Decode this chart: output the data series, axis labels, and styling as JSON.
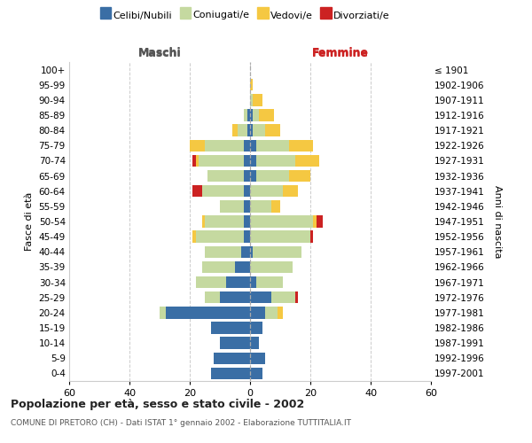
{
  "age_groups": [
    "0-4",
    "5-9",
    "10-14",
    "15-19",
    "20-24",
    "25-29",
    "30-34",
    "35-39",
    "40-44",
    "45-49",
    "50-54",
    "55-59",
    "60-64",
    "65-69",
    "70-74",
    "75-79",
    "80-84",
    "85-89",
    "90-94",
    "95-99",
    "100+"
  ],
  "birth_years": [
    "1997-2001",
    "1992-1996",
    "1987-1991",
    "1982-1986",
    "1977-1981",
    "1972-1976",
    "1967-1971",
    "1962-1966",
    "1957-1961",
    "1952-1956",
    "1947-1951",
    "1942-1946",
    "1937-1941",
    "1932-1936",
    "1927-1931",
    "1922-1926",
    "1917-1921",
    "1912-1916",
    "1907-1911",
    "1902-1906",
    "≤ 1901"
  ],
  "maschi": {
    "celibi": [
      13,
      12,
      10,
      13,
      28,
      10,
      8,
      5,
      3,
      2,
      2,
      2,
      2,
      2,
      2,
      2,
      1,
      1,
      0,
      0,
      0
    ],
    "coniugati": [
      0,
      0,
      0,
      0,
      2,
      5,
      10,
      11,
      12,
      16,
      13,
      8,
      14,
      12,
      15,
      13,
      3,
      1,
      0,
      0,
      0
    ],
    "vedovi": [
      0,
      0,
      0,
      0,
      0,
      0,
      0,
      0,
      0,
      1,
      1,
      0,
      0,
      0,
      1,
      5,
      2,
      0,
      0,
      0,
      0
    ],
    "divorziati": [
      0,
      0,
      0,
      0,
      0,
      0,
      0,
      0,
      0,
      0,
      0,
      0,
      3,
      0,
      1,
      0,
      0,
      0,
      0,
      0,
      0
    ]
  },
  "femmine": {
    "nubili": [
      4,
      5,
      3,
      4,
      5,
      7,
      2,
      0,
      1,
      0,
      0,
      0,
      0,
      2,
      2,
      2,
      1,
      1,
      0,
      0,
      0
    ],
    "coniugate": [
      0,
      0,
      0,
      0,
      4,
      8,
      9,
      14,
      16,
      20,
      21,
      7,
      11,
      11,
      13,
      11,
      4,
      2,
      1,
      0,
      0
    ],
    "vedove": [
      0,
      0,
      0,
      0,
      2,
      0,
      0,
      0,
      0,
      0,
      1,
      3,
      5,
      7,
      8,
      8,
      5,
      5,
      3,
      1,
      0
    ],
    "divorziate": [
      0,
      0,
      0,
      0,
      0,
      1,
      0,
      0,
      0,
      1,
      2,
      0,
      0,
      0,
      0,
      0,
      0,
      0,
      0,
      0,
      0
    ]
  },
  "colors": {
    "celibi": "#3a6ea5",
    "coniugati": "#c5d9a0",
    "vedovi": "#f5c842",
    "divorziati": "#cc2222"
  },
  "xlim": 60,
  "title": "Popolazione per età, sesso e stato civile - 2002",
  "subtitle": "COMUNE DI PRETORO (CH) - Dati ISTAT 1° gennaio 2002 - Elaborazione TUTTITALIA.IT",
  "ylabel_left": "Fasce di età",
  "ylabel_right": "Anni di nascita",
  "xlabel_maschi": "Maschi",
  "xlabel_femmine": "Femmine",
  "bg_color": "#ffffff",
  "grid_color": "#cccccc",
  "legend_labels": [
    "Celibi/Nubili",
    "Coniugati/e",
    "Vedovi/e",
    "Divorziati/e"
  ]
}
